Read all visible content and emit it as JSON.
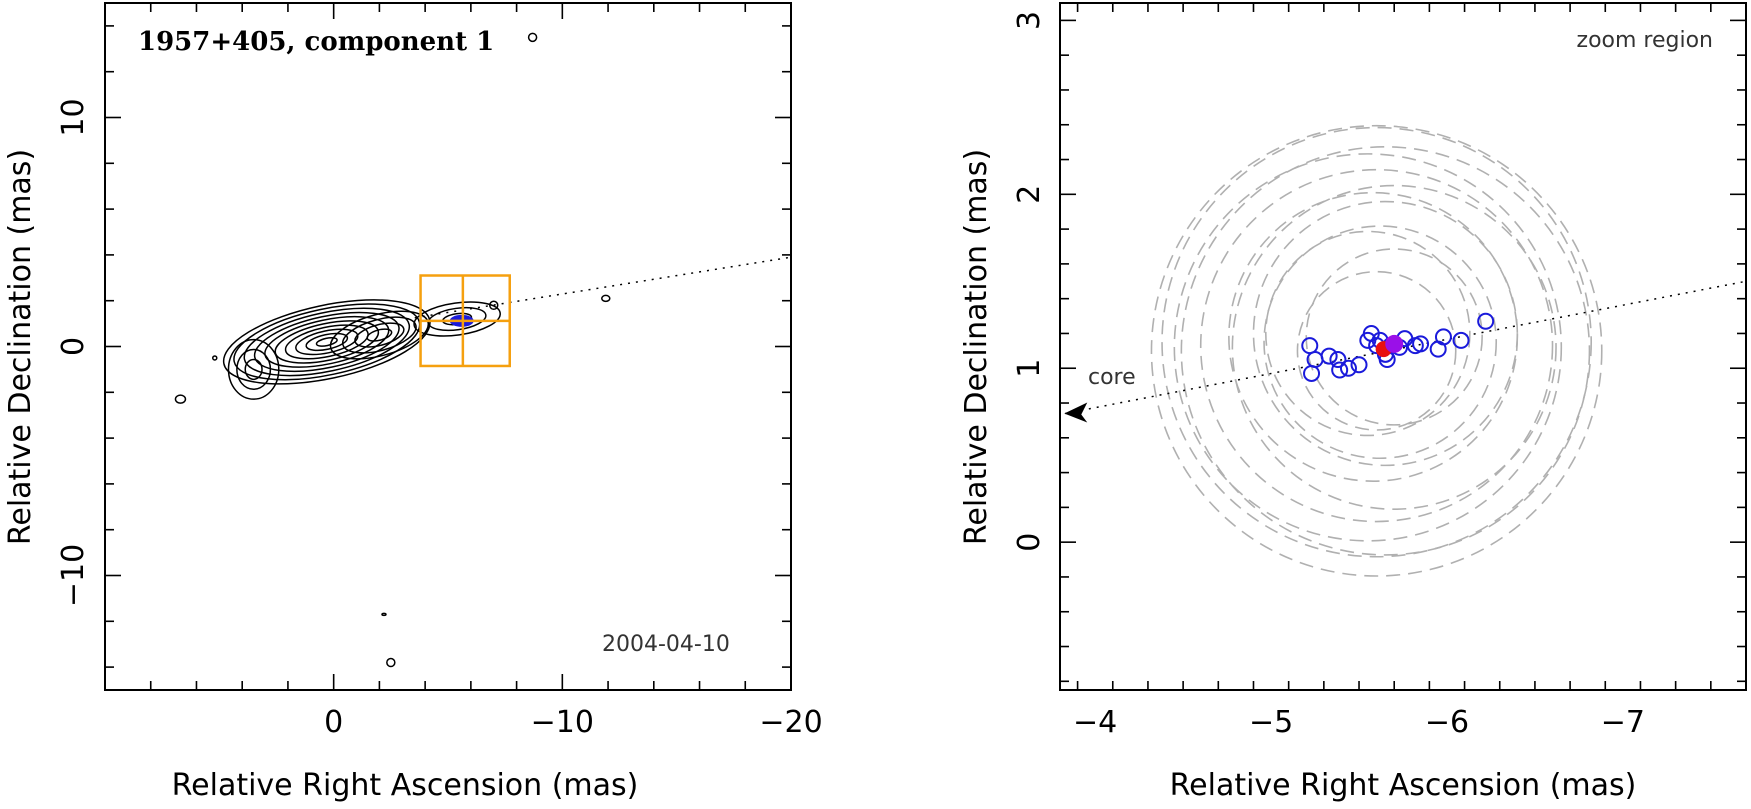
{
  "chart_data": [
    {
      "type": "scatter",
      "panel": "left",
      "title": "1957+405, component 1",
      "date_label": "2004-04-10",
      "xlabel": "Relative Right Ascension (mas)",
      "ylabel": "Relative Declination (mas)",
      "xlim": [
        10,
        -20
      ],
      "ylim": [
        -15,
        15
      ],
      "xticks": [
        0,
        -10,
        -20
      ],
      "xtick_labels": [
        "0",
        "−10",
        "−20"
      ],
      "yticks": [
        10,
        0,
        -10
      ],
      "ytick_labels": [
        "10",
        "0",
        "−10"
      ],
      "zoom_region": {
        "x_range": [
          -3.8,
          -7.7
        ],
        "y_range": [
          -0.85,
          3.1
        ]
      },
      "jet_direction_line": {
        "from": [
          -3.2,
          1.2
        ],
        "to": [
          -20,
          3.9
        ]
      },
      "colors": {
        "zoom_box": "#f5a00f",
        "components": "#1a1adb",
        "contours": "#000000"
      }
    },
    {
      "type": "scatter",
      "panel": "right",
      "annotation": "zoom region",
      "core_label": "core",
      "xlabel": "Relative Right Ascension (mas)",
      "ylabel": "Relative Declination (mas)",
      "xlim": [
        -3.8,
        -7.7
      ],
      "ylim": [
        -0.85,
        3.1
      ],
      "xticks": [
        -4,
        -5,
        -6,
        -7
      ],
      "xtick_labels": [
        "−4",
        "−5",
        "−6",
        "−7"
      ],
      "yticks": [
        3,
        2,
        1,
        0
      ],
      "ytick_labels": [
        "3",
        "2",
        "1",
        "0"
      ],
      "series": [
        {
          "values": [
            [
              -5.22,
              1.13
            ],
            [
              -5.23,
              0.97
            ],
            [
              -5.25,
              1.05
            ],
            [
              -5.33,
              1.07
            ],
            [
              -5.38,
              1.05
            ],
            [
              -5.39,
              0.99
            ],
            [
              -5.44,
              1.0
            ],
            [
              -5.5,
              1.02
            ],
            [
              -5.55,
              1.16
            ],
            [
              -5.57,
              1.2
            ],
            [
              -5.6,
              1.13
            ],
            [
              -5.62,
              1.16
            ],
            [
              -5.65,
              1.08
            ],
            [
              -5.66,
              1.05
            ],
            [
              -5.68,
              1.13
            ],
            [
              -5.73,
              1.12
            ],
            [
              -5.76,
              1.17
            ],
            [
              -5.82,
              1.13
            ],
            [
              -5.85,
              1.14
            ],
            [
              -5.95,
              1.11
            ],
            [
              -5.98,
              1.18
            ],
            [
              -6.08,
              1.16
            ],
            [
              -6.22,
              1.27
            ]
          ]
        }
      ],
      "mean_positions": [
        [
          -5.64,
          1.11
        ],
        [
          -5.7,
          1.14
        ]
      ],
      "uncertainty_circles": [
        [
          -5.6,
          1.1,
          1.28
        ],
        [
          -5.6,
          1.15,
          1.22
        ],
        [
          -5.65,
          1.1,
          1.16
        ],
        [
          -5.55,
          1.12,
          1.1
        ],
        [
          -5.6,
          1.13,
          1.0
        ],
        [
          -5.7,
          1.12,
          0.92
        ],
        [
          -5.58,
          1.18,
          0.82
        ],
        [
          -5.65,
          1.2,
          0.75
        ],
        [
          -5.62,
          1.15,
          0.66
        ],
        [
          -5.55,
          1.2,
          0.58
        ],
        [
          -5.7,
          1.18,
          0.5
        ],
        [
          -5.6,
          1.1,
          0.45
        ]
      ],
      "jet_direction_line": {
        "from": [
          -3.83,
          0.74
        ],
        "to": [
          -7.7,
          1.5
        ]
      },
      "colors": {
        "components": "#1a1adb",
        "mean_1": "#e81010",
        "mean_2": "#9a10e8",
        "uncertainty": "#b0b0b0"
      }
    }
  ]
}
